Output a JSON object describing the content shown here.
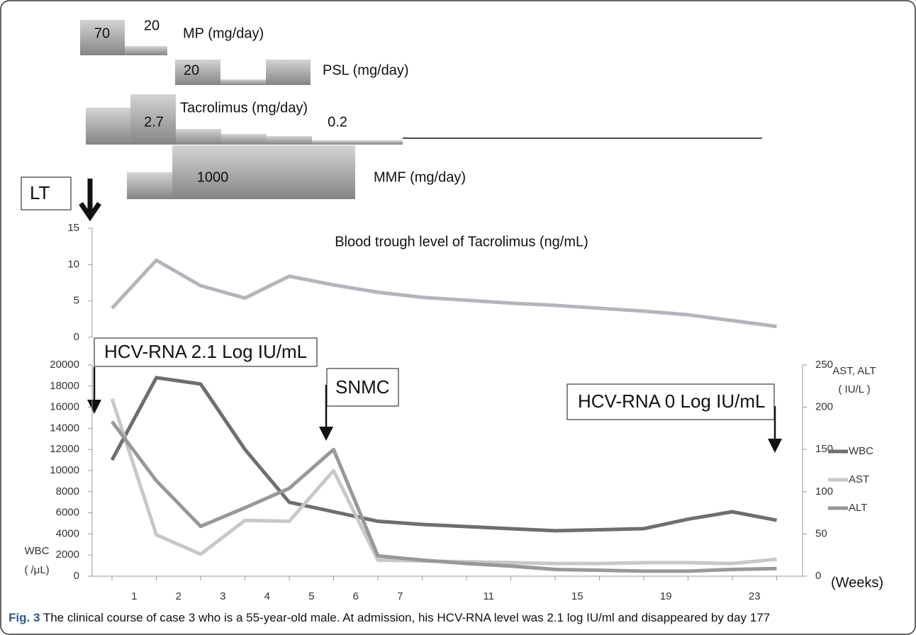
{
  "regimen": [
    {
      "name": "MP (mg/day)",
      "doses": [
        70,
        20
      ]
    },
    {
      "name": "PSL (mg/day)",
      "doses": [
        20
      ]
    },
    {
      "name": "Tacrolimus (mg/day)",
      "doses": [
        2.7,
        0.2
      ]
    },
    {
      "name": "MMF (mg/day)",
      "doses": [
        1000
      ]
    }
  ],
  "annotations": {
    "lt": "LT",
    "hcv_start": "HCV-RNA 2.1 Log IU/mL",
    "snmc": "SNMC",
    "hcv_end": "HCV-RNA 0 Log IU/mL"
  },
  "caption": {
    "label": "Fig. 3",
    "text": " The clinical course of case 3 who is a 55-year-old male. At admission, his HCV-RNA level was 2.1 log IU/ml and disappeared by day 177"
  },
  "chart_data": [
    {
      "type": "line",
      "title": "Blood trough level of Tacrolimus (ng/mL)",
      "categories": [
        "1",
        "2",
        "3",
        "4",
        "5",
        "6",
        "7",
        null,
        "11",
        null,
        "15",
        null,
        "19",
        null,
        "23",
        null
      ],
      "series": [
        {
          "name": "Tacrolimus",
          "color": "#b4b4bc",
          "values": [
            4,
            10.6,
            7.1,
            5.4,
            8.4,
            7.2,
            6.2,
            5.5,
            5.1,
            4.7,
            4.4,
            4.0,
            3.6,
            3.1,
            2.3,
            1.5
          ]
        }
      ],
      "ylim": [
        0,
        15
      ],
      "yticks": [
        0,
        5,
        10,
        15
      ]
    },
    {
      "type": "line",
      "x_label": "(Weeks)",
      "y_label": [
        "WBC",
        "( /μL)"
      ],
      "y2_label": [
        "AST, ALT",
        "( IU/L )"
      ],
      "categories": [
        "1",
        "2",
        "3",
        "4",
        "5",
        "6",
        "7",
        null,
        "11",
        null,
        "15",
        null,
        "19",
        null,
        "23",
        null
      ],
      "series": [
        {
          "name": "WBC",
          "color": "#6e6e6e",
          "values": [
            11000,
            18800,
            18200,
            12000,
            7000,
            6100,
            5200,
            4900,
            4700,
            4500,
            4300,
            4400,
            4500,
            5400,
            6100,
            5300
          ]
        },
        {
          "name": "AST",
          "color": "#c8c8c8",
          "axis": "y2",
          "values": [
            210,
            49,
            26,
            66,
            65,
            125,
            19,
            18,
            17,
            16,
            15,
            15,
            16,
            16,
            15,
            20
          ]
        },
        {
          "name": "ALT",
          "color": "#989898",
          "axis": "y2",
          "values": [
            183,
            113,
            59,
            81,
            104,
            150,
            24,
            19,
            15,
            12,
            8,
            7,
            6,
            6,
            8,
            9
          ]
        }
      ],
      "ylim": [
        0,
        20000
      ],
      "yticks": [
        0,
        2000,
        4000,
        6000,
        8000,
        10000,
        12000,
        14000,
        16000,
        18000,
        20000
      ],
      "y2lim": [
        0,
        250
      ],
      "y2ticks": [
        0,
        50,
        100,
        150,
        200,
        250
      ],
      "legend": "right"
    }
  ]
}
